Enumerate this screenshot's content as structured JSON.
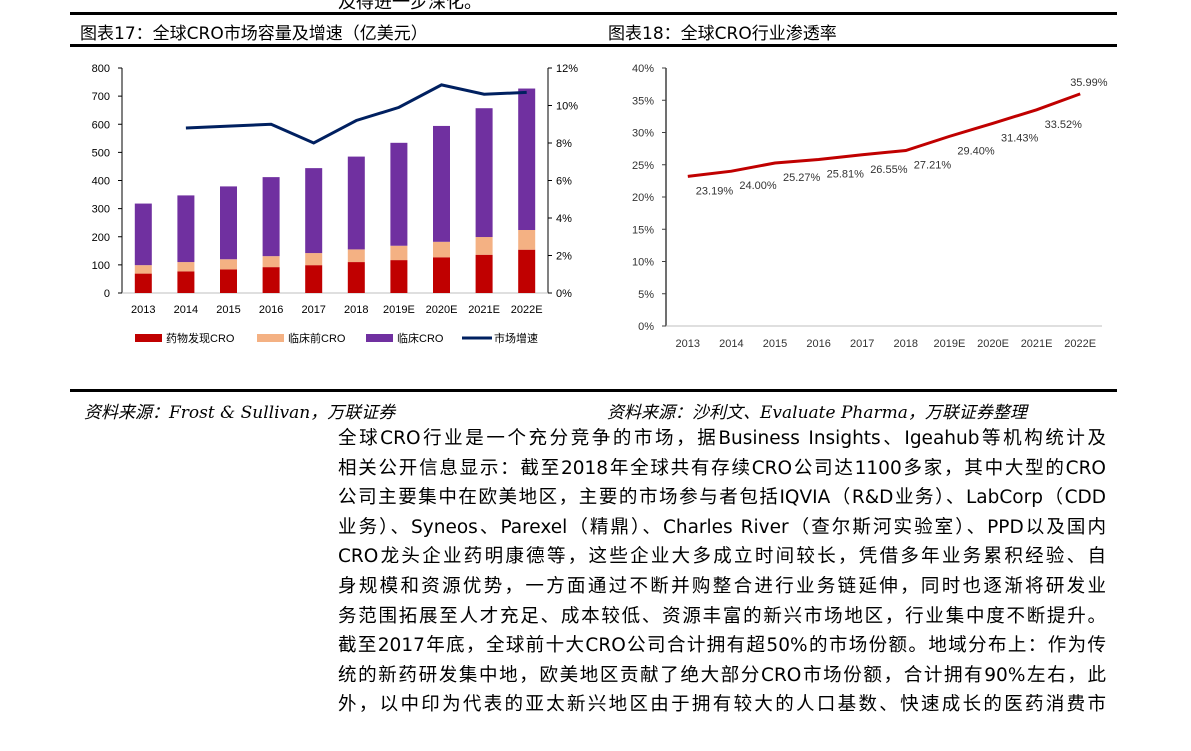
{
  "top_fragment": "及得进一步深化。",
  "figure17": {
    "title": "图表17：全球CRO市场容量及增速（亿美元）",
    "source": "资料来源：Frost & Sullivan，万联证券"
  },
  "figure18": {
    "title": "图表18：全球CRO行业渗透率",
    "source": "资料来源：沙利文、Evaluate Pharma，万联证券整理"
  },
  "body_lines": [
    "全球CRO行业是一个充分竞争的市场，据Business Insights、Igeahub等机构统计及",
    "相关公开信息显示：截至2018年全球共有存续CRO公司达1100多家，其中大型的CRO",
    "公司主要集中在欧美地区，主要的市场参与者包括IQVIA（R&D业务）、LabCorp（CDD",
    "业务）、Syneos、Parexel（精鼎）、Charles River（查尔斯河实验室）、PPD以及国内",
    "CRO龙头企业药明康德等，这些企业大多成立时间较长，凭借多年业务累积经验、自",
    "身规模和资源优势，一方面通过不断并购整合进行业务链延伸，同时也逐渐将研发业",
    "务范围拓展至人才充足、成本较低、资源丰富的新兴市场地区，行业集中度不断提升。",
    "截至2017年底，全球前十大CRO公司合计拥有超50%的市场份额。地域分布上：作为传",
    "统的新药研发集中地，欧美地区贡献了绝大部分CRO市场份额，合计拥有90%左右，此",
    "外，以中印为代表的亚太新兴地区由于拥有较大的人口基数、快速成长的医药消费市"
  ],
  "chart_data": [
    {
      "type": "bar",
      "stacked": true,
      "categories": [
        "2013",
        "2014",
        "2015",
        "2016",
        "2017",
        "2018",
        "2019E",
        "2020E",
        "2021E",
        "2022E"
      ],
      "ylim": [
        0,
        800
      ],
      "yticks": [
        "0",
        "100",
        "200",
        "300",
        "400",
        "500",
        "600",
        "700",
        "800"
      ],
      "y2lim": [
        0,
        12
      ],
      "y2ticks": [
        "0%",
        "2%",
        "4%",
        "6%",
        "8%",
        "10%",
        "12%"
      ],
      "legend": "bottom",
      "series": [
        {
          "name": "药物发现CRO",
          "color": "#c00000",
          "values": [
            69,
            77,
            84,
            92,
            99,
            110,
            117,
            127,
            136,
            154
          ]
        },
        {
          "name": "临床前CRO",
          "color": "#f4b183",
          "values": [
            30,
            33,
            36,
            39,
            43,
            45,
            51,
            55,
            63,
            70
          ]
        },
        {
          "name": "临床CRO",
          "color": "#7030a0",
          "values": [
            219,
            237,
            259,
            281,
            302,
            330,
            366,
            412,
            458,
            503
          ]
        },
        {
          "name": "市场增速",
          "type": "line",
          "axis": "right",
          "color": "#002060",
          "values": [
            null,
            8.8,
            8.9,
            9.0,
            8.0,
            9.2,
            9.9,
            11.1,
            10.6,
            10.7
          ]
        }
      ]
    },
    {
      "type": "line",
      "categories": [
        "2013",
        "2014",
        "2015",
        "2016",
        "2017",
        "2018",
        "2019E",
        "2020E",
        "2021E",
        "2022E"
      ],
      "ylim": [
        0,
        40
      ],
      "yticks": [
        "0%",
        "5%",
        "10%",
        "15%",
        "20%",
        "25%",
        "30%",
        "35%",
        "40%"
      ],
      "series": [
        {
          "color": "#c00000",
          "values": [
            23.19,
            24.0,
            25.27,
            25.81,
            26.55,
            27.21,
            29.4,
            31.43,
            33.52,
            35.99
          ],
          "labels": [
            "23.19%",
            "24.00%",
            "25.27%",
            "25.81%",
            "26.55%",
            "27.21%",
            "29.40%",
            "31.43%",
            "33.52%",
            "35.99%"
          ]
        }
      ]
    }
  ]
}
